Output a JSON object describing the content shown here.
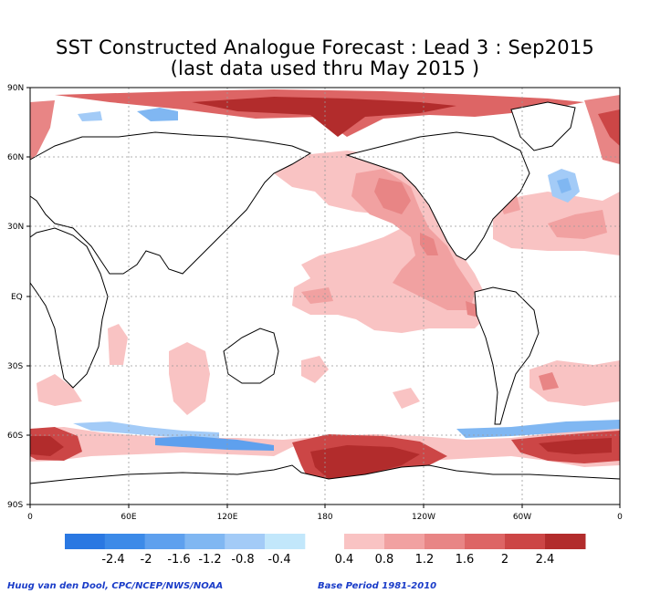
{
  "title_line1": "SST Constructed Analogue Forecast : Lead 3 : Sep2015",
  "title_line2": "(last data used thru May 2015 )",
  "lat_labels": [
    "90N",
    "60N",
    "30N",
    "EQ",
    "30S",
    "60S",
    "90S"
  ],
  "lon_labels": [
    "0",
    "60E",
    "120E",
    "180",
    "120W",
    "60W",
    "0"
  ],
  "colorbar": {
    "neg_colors": [
      "#2a78e2",
      "#3c8ae8",
      "#5ea0ee",
      "#80b7f2",
      "#a3cbf7",
      "#c2e7fb"
    ],
    "neg_labels": [
      "-2.4",
      "-2",
      "-1.6",
      "-1.2",
      "-0.8",
      "-0.4"
    ],
    "pos_colors": [
      "#f9c3c3",
      "#f1a1a1",
      "#e88585",
      "#dd6565",
      "#cc4646",
      "#b22c2c"
    ],
    "pos_labels": [
      "0.4",
      "0.8",
      "1.2",
      "1.6",
      "2",
      "2.4"
    ]
  },
  "credit_left": "Huug van den Dool, CPC/NCEP/NWS/NOAA",
  "credit_right": "Base Period 1981-2010"
}
